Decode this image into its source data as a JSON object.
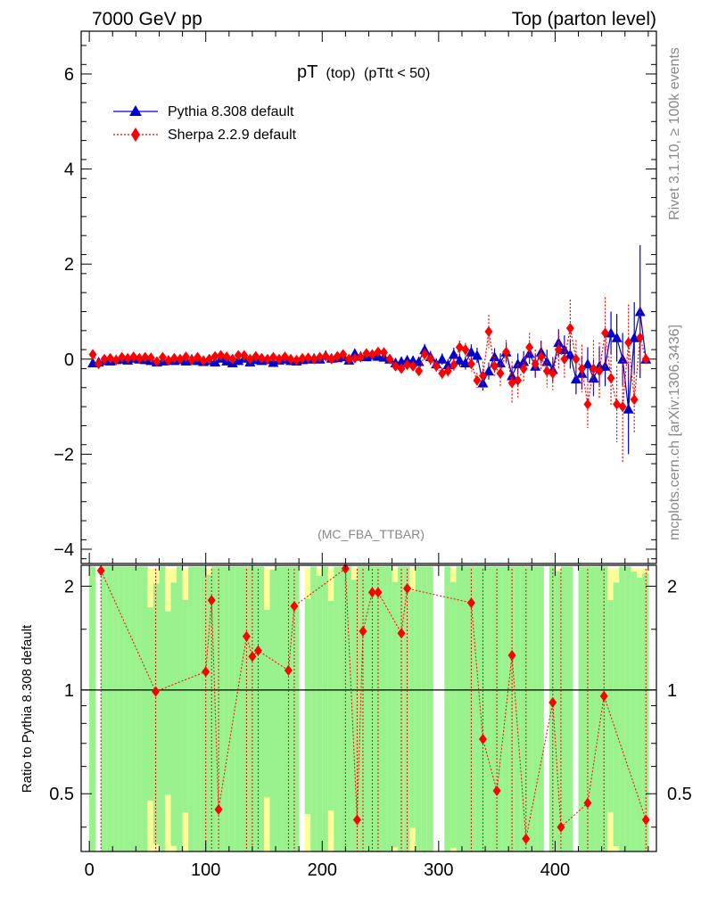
{
  "header": {
    "left": "7000 GeV pp",
    "right": "Top (parton level)"
  },
  "side_labels": {
    "rivet": "Rivet 3.1.10, ≥ 100k events",
    "mcplots": "mcplots.cern.ch [arXiv:1306.3436]"
  },
  "chart_data": [
    {
      "type": "line",
      "title": "pT",
      "title_sub1": "(top)",
      "title_sub2": "(pTtt < 50)",
      "watermark": "(MC_FBA_TTBAR)",
      "xlabel": "",
      "ylabel": "",
      "xlim": [
        -7,
        487
      ],
      "ylim": [
        -4.3,
        6.9
      ],
      "yticks": [
        -4,
        -2,
        0,
        2,
        4,
        6
      ],
      "ytick_labels": [
        "−4",
        "−2",
        "0",
        "2",
        "4",
        "6"
      ],
      "legend_position": "top-left",
      "series": [
        {
          "name": "Pythia 8.308 default",
          "color": "#0000cc",
          "marker": "triangle",
          "line": "solid",
          "x": [
            3,
            8,
            13,
            18,
            23,
            28,
            33,
            38,
            43,
            48,
            53,
            58,
            63,
            68,
            73,
            78,
            83,
            88,
            93,
            98,
            103,
            108,
            113,
            118,
            123,
            128,
            133,
            138,
            143,
            148,
            153,
            158,
            163,
            168,
            173,
            178,
            183,
            188,
            193,
            198,
            203,
            208,
            213,
            218,
            223,
            228,
            233,
            238,
            243,
            248,
            253,
            258,
            263,
            268,
            273,
            278,
            283,
            288,
            293,
            298,
            303,
            308,
            313,
            318,
            323,
            328,
            333,
            338,
            343,
            348,
            353,
            358,
            363,
            368,
            373,
            378,
            383,
            388,
            393,
            398,
            403,
            408,
            413,
            418,
            423,
            428,
            433,
            438,
            443,
            448,
            453,
            458,
            463,
            468,
            473,
            478
          ],
          "y": [
            -0.08,
            -0.06,
            -0.03,
            -0.04,
            -0.01,
            0.0,
            -0.02,
            0.02,
            0.0,
            -0.01,
            -0.03,
            -0.06,
            -0.04,
            -0.02,
            -0.03,
            -0.01,
            -0.04,
            0.0,
            -0.03,
            -0.05,
            -0.03,
            -0.06,
            0.02,
            -0.04,
            -0.08,
            -0.03,
            0.02,
            -0.06,
            -0.01,
            -0.03,
            -0.01,
            -0.07,
            -0.02,
            0.0,
            -0.03,
            -0.04,
            -0.01,
            0.0,
            0.02,
            0.0,
            0.08,
            0.02,
            0.03,
            0.05,
            -0.02,
            0.12,
            0.06,
            0.05,
            0.08,
            0.06,
            0.04,
            0.0,
            -0.08,
            -0.05,
            -0.02,
            -0.03,
            -0.05,
            0.2,
            0.05,
            -0.1,
            0.0,
            -0.12,
            0.1,
            -0.02,
            -0.08,
            0.15,
            0.08,
            -0.5,
            -0.25,
            0.05,
            -0.08,
            0.15,
            -0.35,
            -0.1,
            -0.05,
            0.12,
            -0.15,
            0.15,
            -0.05,
            -0.22,
            0.35,
            0.2,
            0.1,
            -0.42,
            -0.3,
            -0.1,
            -0.4,
            -0.15,
            -0.15,
            0.55,
            0.45,
            0.0,
            -1.05,
            0.45,
            1.0,
            0.0
          ],
          "err": [
            0.05,
            0.05,
            0.05,
            0.05,
            0.05,
            0.05,
            0.05,
            0.05,
            0.05,
            0.05,
            0.05,
            0.05,
            0.05,
            0.05,
            0.05,
            0.05,
            0.05,
            0.05,
            0.05,
            0.05,
            0.05,
            0.05,
            0.06,
            0.06,
            0.06,
            0.06,
            0.06,
            0.06,
            0.06,
            0.06,
            0.06,
            0.06,
            0.06,
            0.06,
            0.06,
            0.06,
            0.06,
            0.06,
            0.06,
            0.06,
            0.07,
            0.07,
            0.07,
            0.07,
            0.07,
            0.08,
            0.08,
            0.08,
            0.08,
            0.08,
            0.08,
            0.1,
            0.1,
            0.1,
            0.1,
            0.1,
            0.1,
            0.12,
            0.12,
            0.12,
            0.12,
            0.12,
            0.14,
            0.14,
            0.14,
            0.16,
            0.16,
            0.16,
            0.18,
            0.18,
            0.2,
            0.2,
            0.2,
            0.22,
            0.22,
            0.22,
            0.24,
            0.24,
            0.25,
            0.25,
            0.28,
            0.3,
            0.3,
            0.32,
            0.34,
            0.35,
            0.38,
            0.4,
            0.42,
            0.45,
            0.5,
            0.55,
            0.95,
            0.75,
            1.4,
            0.0
          ]
        },
        {
          "name": "Sherpa 2.2.9 default",
          "color": "#ff0000",
          "marker": "diamond",
          "line": "dotted",
          "x": [
            3,
            8,
            13,
            18,
            23,
            28,
            33,
            38,
            43,
            48,
            53,
            58,
            63,
            68,
            73,
            78,
            83,
            88,
            93,
            98,
            103,
            108,
            113,
            118,
            123,
            128,
            133,
            138,
            143,
            148,
            153,
            158,
            163,
            168,
            173,
            178,
            183,
            188,
            193,
            198,
            203,
            208,
            213,
            218,
            223,
            228,
            233,
            238,
            243,
            248,
            253,
            258,
            263,
            268,
            273,
            278,
            283,
            288,
            293,
            298,
            303,
            308,
            313,
            318,
            323,
            328,
            333,
            338,
            343,
            348,
            353,
            358,
            363,
            368,
            373,
            378,
            383,
            388,
            393,
            398,
            403,
            408,
            413,
            418,
            423,
            428,
            433,
            438,
            443,
            448,
            453,
            458,
            463,
            468,
            473,
            478
          ],
          "y": [
            0.1,
            -0.1,
            0.0,
            0.02,
            -0.02,
            0.04,
            0.02,
            0.05,
            0.02,
            0.04,
            0.03,
            -0.05,
            0.04,
            -0.03,
            0.02,
            0.0,
            0.05,
            -0.02,
            0.04,
            -0.03,
            0.0,
            0.06,
            0.08,
            0.05,
            0.0,
            0.08,
            0.08,
            0.0,
            0.06,
            0.02,
            0.0,
            0.04,
            0.0,
            0.05,
            0.0,
            -0.02,
            0.02,
            0.03,
            0.0,
            0.04,
            0.06,
            0.0,
            0.06,
            0.1,
            0.0,
            0.02,
            0.04,
            0.12,
            0.1,
            0.15,
            0.14,
            0.0,
            -0.15,
            -0.2,
            -0.12,
            -0.15,
            -0.25,
            0.1,
            0.0,
            -0.15,
            -0.3,
            -0.25,
            -0.12,
            0.25,
            0.2,
            -0.1,
            -0.45,
            -0.35,
            0.58,
            -0.15,
            -0.3,
            0.15,
            -0.5,
            -0.45,
            -0.2,
            0.25,
            -0.1,
            0.05,
            -0.25,
            -0.3,
            0.2,
            0.0,
            0.65,
            0.0,
            -0.2,
            -0.95,
            -0.2,
            -0.25,
            0.55,
            -0.4,
            -0.95,
            -1.0,
            0.35,
            -0.85,
            0.45,
            0.0
          ],
          "err": [
            0.05,
            0.05,
            0.05,
            0.05,
            0.05,
            0.05,
            0.05,
            0.05,
            0.05,
            0.05,
            0.05,
            0.05,
            0.05,
            0.05,
            0.05,
            0.05,
            0.05,
            0.05,
            0.05,
            0.05,
            0.05,
            0.05,
            0.06,
            0.06,
            0.06,
            0.06,
            0.06,
            0.06,
            0.06,
            0.06,
            0.06,
            0.06,
            0.06,
            0.06,
            0.06,
            0.06,
            0.06,
            0.06,
            0.06,
            0.06,
            0.07,
            0.07,
            0.07,
            0.07,
            0.07,
            0.08,
            0.08,
            0.08,
            0.08,
            0.08,
            0.08,
            0.1,
            0.1,
            0.1,
            0.1,
            0.1,
            0.1,
            0.12,
            0.12,
            0.12,
            0.12,
            0.12,
            0.14,
            0.14,
            0.14,
            0.16,
            0.16,
            0.3,
            0.35,
            0.2,
            0.3,
            0.25,
            0.45,
            0.35,
            0.3,
            0.3,
            0.3,
            0.3,
            0.35,
            0.35,
            0.4,
            0.4,
            0.6,
            0.4,
            0.5,
            0.5,
            0.6,
            0.6,
            0.75,
            0.6,
            0.8,
            1.2,
            0.8,
            0.7,
            0.7,
            0.0
          ]
        }
      ]
    },
    {
      "type": "line",
      "title": "",
      "xlabel": "",
      "ylabel": "Ratio to Pythia 8.308 default",
      "xlim": [
        -7,
        487
      ],
      "ylim": [
        0.34,
        2.3
      ],
      "yticks": [
        0.5,
        1,
        2
      ],
      "ytick_labels": [
        "0.5",
        "1",
        "2"
      ],
      "xticks": [
        0,
        100,
        200,
        300,
        400
      ],
      "xtick_labels": [
        "0",
        "100",
        "200",
        "300",
        "400"
      ],
      "reference_line": 1,
      "bands": [
        {
          "color": "#ffff99",
          "name": "2 sigma"
        },
        {
          "color": "#99f28e",
          "name": "1 sigma"
        }
      ],
      "band_gaps_x": [
        8,
        183,
        298,
        303,
        393,
        418
      ],
      "series": [
        {
          "name": "Sherpa 2.2.9 default",
          "color": "#ff0000",
          "marker": "diamond",
          "line": "dotted",
          "x": [
            10,
            57,
            100,
            105,
            111,
            135,
            140,
            145,
            171,
            176,
            220,
            230,
            235,
            243,
            248,
            268,
            273,
            328,
            338,
            350,
            363,
            375,
            398,
            405,
            428,
            442,
            478
          ],
          "y": [
            2.22,
            0.99,
            1.13,
            1.82,
            0.45,
            1.43,
            1.25,
            1.3,
            1.14,
            1.75,
            2.25,
            0.42,
            1.48,
            1.92,
            1.92,
            1.46,
            1.97,
            1.79,
            0.72,
            0.51,
            1.26,
            0.37,
            0.92,
            0.4,
            0.47,
            0.96,
            0.42
          ]
        }
      ]
    }
  ]
}
